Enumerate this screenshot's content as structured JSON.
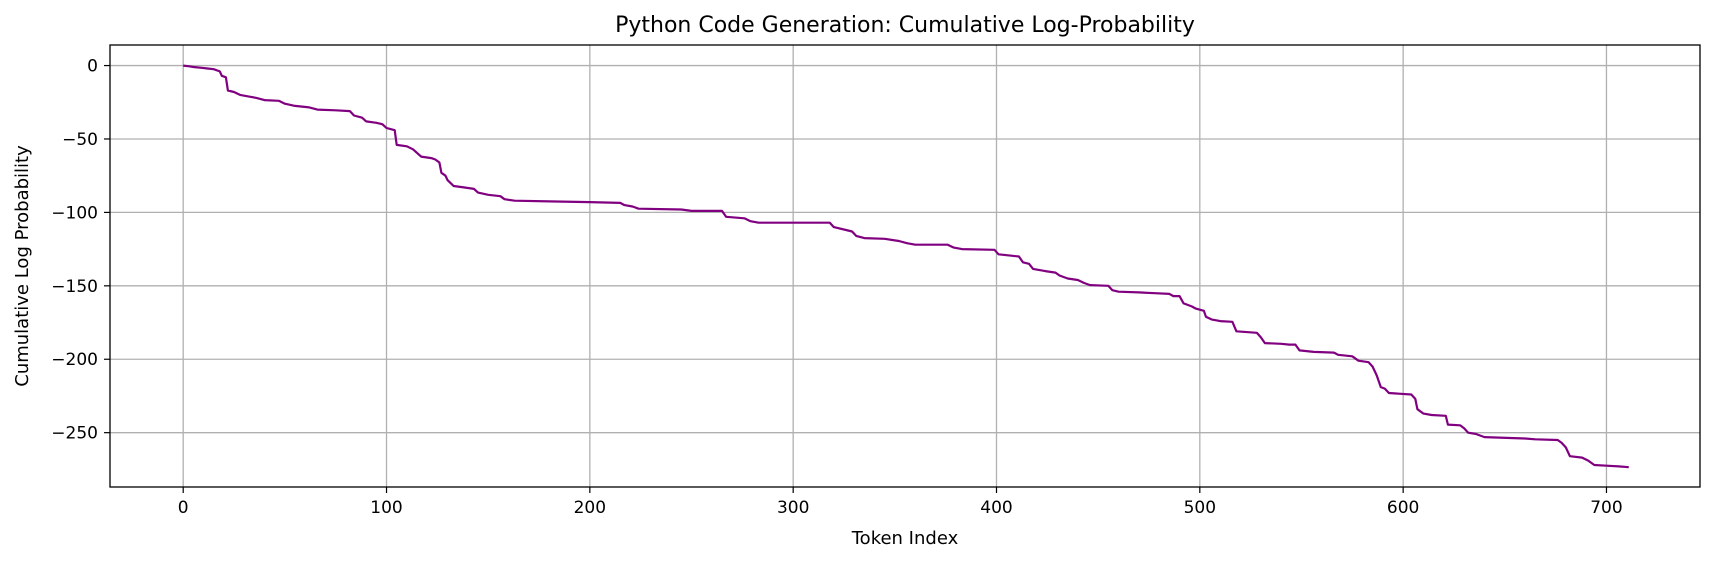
{
  "chart_data": {
    "type": "line",
    "title": "Python Code Generation: Cumulative Log-Probability",
    "xlabel": "Token Index",
    "ylabel": "Cumulative Log Probability",
    "xlim": [
      -36,
      746
    ],
    "ylim": [
      -287,
      14
    ],
    "grid": true,
    "x_ticks": [
      0,
      100,
      200,
      300,
      400,
      500,
      600,
      700
    ],
    "y_ticks": [
      0,
      -50,
      -100,
      -150,
      -200,
      -250
    ],
    "series": [
      {
        "color": "#800080",
        "points": [
          [
            0,
            0
          ],
          [
            3,
            -0.5
          ],
          [
            5,
            -1
          ],
          [
            9,
            -1.5
          ],
          [
            12,
            -2
          ],
          [
            15,
            -2.5
          ],
          [
            18,
            -4
          ],
          [
            19,
            -7
          ],
          [
            21,
            -8
          ],
          [
            22,
            -17
          ],
          [
            25,
            -18
          ],
          [
            28,
            -20
          ],
          [
            32,
            -21
          ],
          [
            36,
            -22
          ],
          [
            40,
            -23.5
          ],
          [
            47,
            -24
          ],
          [
            50,
            -26
          ],
          [
            55,
            -27.5
          ],
          [
            62,
            -28.5
          ],
          [
            66,
            -30
          ],
          [
            75,
            -30.5
          ],
          [
            82,
            -31
          ],
          [
            84,
            -34
          ],
          [
            88,
            -35.5
          ],
          [
            90,
            -38
          ],
          [
            95,
            -39
          ],
          [
            98,
            -40
          ],
          [
            100,
            -42.5
          ],
          [
            104,
            -44
          ],
          [
            105,
            -54
          ],
          [
            110,
            -55
          ],
          [
            113,
            -57
          ],
          [
            117,
            -62
          ],
          [
            122,
            -63
          ],
          [
            124,
            -64
          ],
          [
            126,
            -66
          ],
          [
            127,
            -73
          ],
          [
            129,
            -75
          ],
          [
            130,
            -78
          ],
          [
            133,
            -82
          ],
          [
            138,
            -83
          ],
          [
            143,
            -84
          ],
          [
            145,
            -86.5
          ],
          [
            150,
            -88
          ],
          [
            156,
            -89
          ],
          [
            158,
            -91
          ],
          [
            163,
            -92
          ],
          [
            180,
            -92.5
          ],
          [
            200,
            -93
          ],
          [
            215,
            -93.5
          ],
          [
            217,
            -95
          ],
          [
            221,
            -96
          ],
          [
            224,
            -97.5
          ],
          [
            245,
            -98
          ],
          [
            250,
            -99
          ],
          [
            265,
            -99
          ],
          [
            267,
            -103
          ],
          [
            276,
            -104
          ],
          [
            279,
            -106
          ],
          [
            283,
            -107
          ],
          [
            318,
            -107
          ],
          [
            320,
            -110
          ],
          [
            326,
            -112
          ],
          [
            329,
            -113
          ],
          [
            331,
            -116
          ],
          [
            335,
            -117.5
          ],
          [
            345,
            -118
          ],
          [
            352,
            -119.5
          ],
          [
            356,
            -121
          ],
          [
            360,
            -122
          ],
          [
            376,
            -122
          ],
          [
            379,
            -124
          ],
          [
            383,
            -125
          ],
          [
            399,
            -125.5
          ],
          [
            401,
            -128.5
          ],
          [
            411,
            -130
          ],
          [
            413,
            -134
          ],
          [
            416,
            -135
          ],
          [
            418,
            -138.5
          ],
          [
            424,
            -140
          ],
          [
            429,
            -141
          ],
          [
            431,
            -143
          ],
          [
            435,
            -145
          ],
          [
            440,
            -146
          ],
          [
            443,
            -148
          ],
          [
            446,
            -149.5
          ],
          [
            455,
            -150
          ],
          [
            457,
            -153
          ],
          [
            460,
            -154
          ],
          [
            470,
            -154.5
          ],
          [
            478,
            -155
          ],
          [
            485,
            -155.5
          ],
          [
            487,
            -157
          ],
          [
            490,
            -157
          ],
          [
            492,
            -162
          ],
          [
            496,
            -164
          ],
          [
            498,
            -165.5
          ],
          [
            502,
            -167
          ],
          [
            503,
            -171
          ],
          [
            506,
            -173
          ],
          [
            510,
            -174
          ],
          [
            516,
            -174.5
          ],
          [
            518,
            -181
          ],
          [
            528,
            -182
          ],
          [
            530,
            -185
          ],
          [
            532,
            -189
          ],
          [
            540,
            -189.5
          ],
          [
            544,
            -190
          ],
          [
            547,
            -190
          ],
          [
            549,
            -194
          ],
          [
            556,
            -195
          ],
          [
            566,
            -195.5
          ],
          [
            568,
            -197
          ],
          [
            575,
            -198
          ],
          [
            578,
            -201
          ],
          [
            583,
            -202
          ],
          [
            585,
            -205
          ],
          [
            587,
            -211
          ],
          [
            589,
            -219
          ],
          [
            591,
            -220
          ],
          [
            593,
            -223
          ],
          [
            604,
            -224
          ],
          [
            606,
            -227
          ],
          [
            607,
            -234
          ],
          [
            610,
            -237
          ],
          [
            614,
            -238
          ],
          [
            621,
            -238.5
          ],
          [
            622,
            -244.5
          ],
          [
            628,
            -245
          ],
          [
            630,
            -247
          ],
          [
            632,
            -250
          ],
          [
            636,
            -251
          ],
          [
            640,
            -253
          ],
          [
            660,
            -254
          ],
          [
            665,
            -254.5
          ],
          [
            676,
            -255
          ],
          [
            678,
            -257
          ],
          [
            680,
            -260
          ],
          [
            682,
            -266
          ],
          [
            688,
            -267
          ],
          [
            691,
            -269
          ],
          [
            694,
            -272
          ],
          [
            700,
            -272.5
          ],
          [
            706,
            -273
          ],
          [
            711,
            -273.5
          ]
        ]
      }
    ]
  }
}
